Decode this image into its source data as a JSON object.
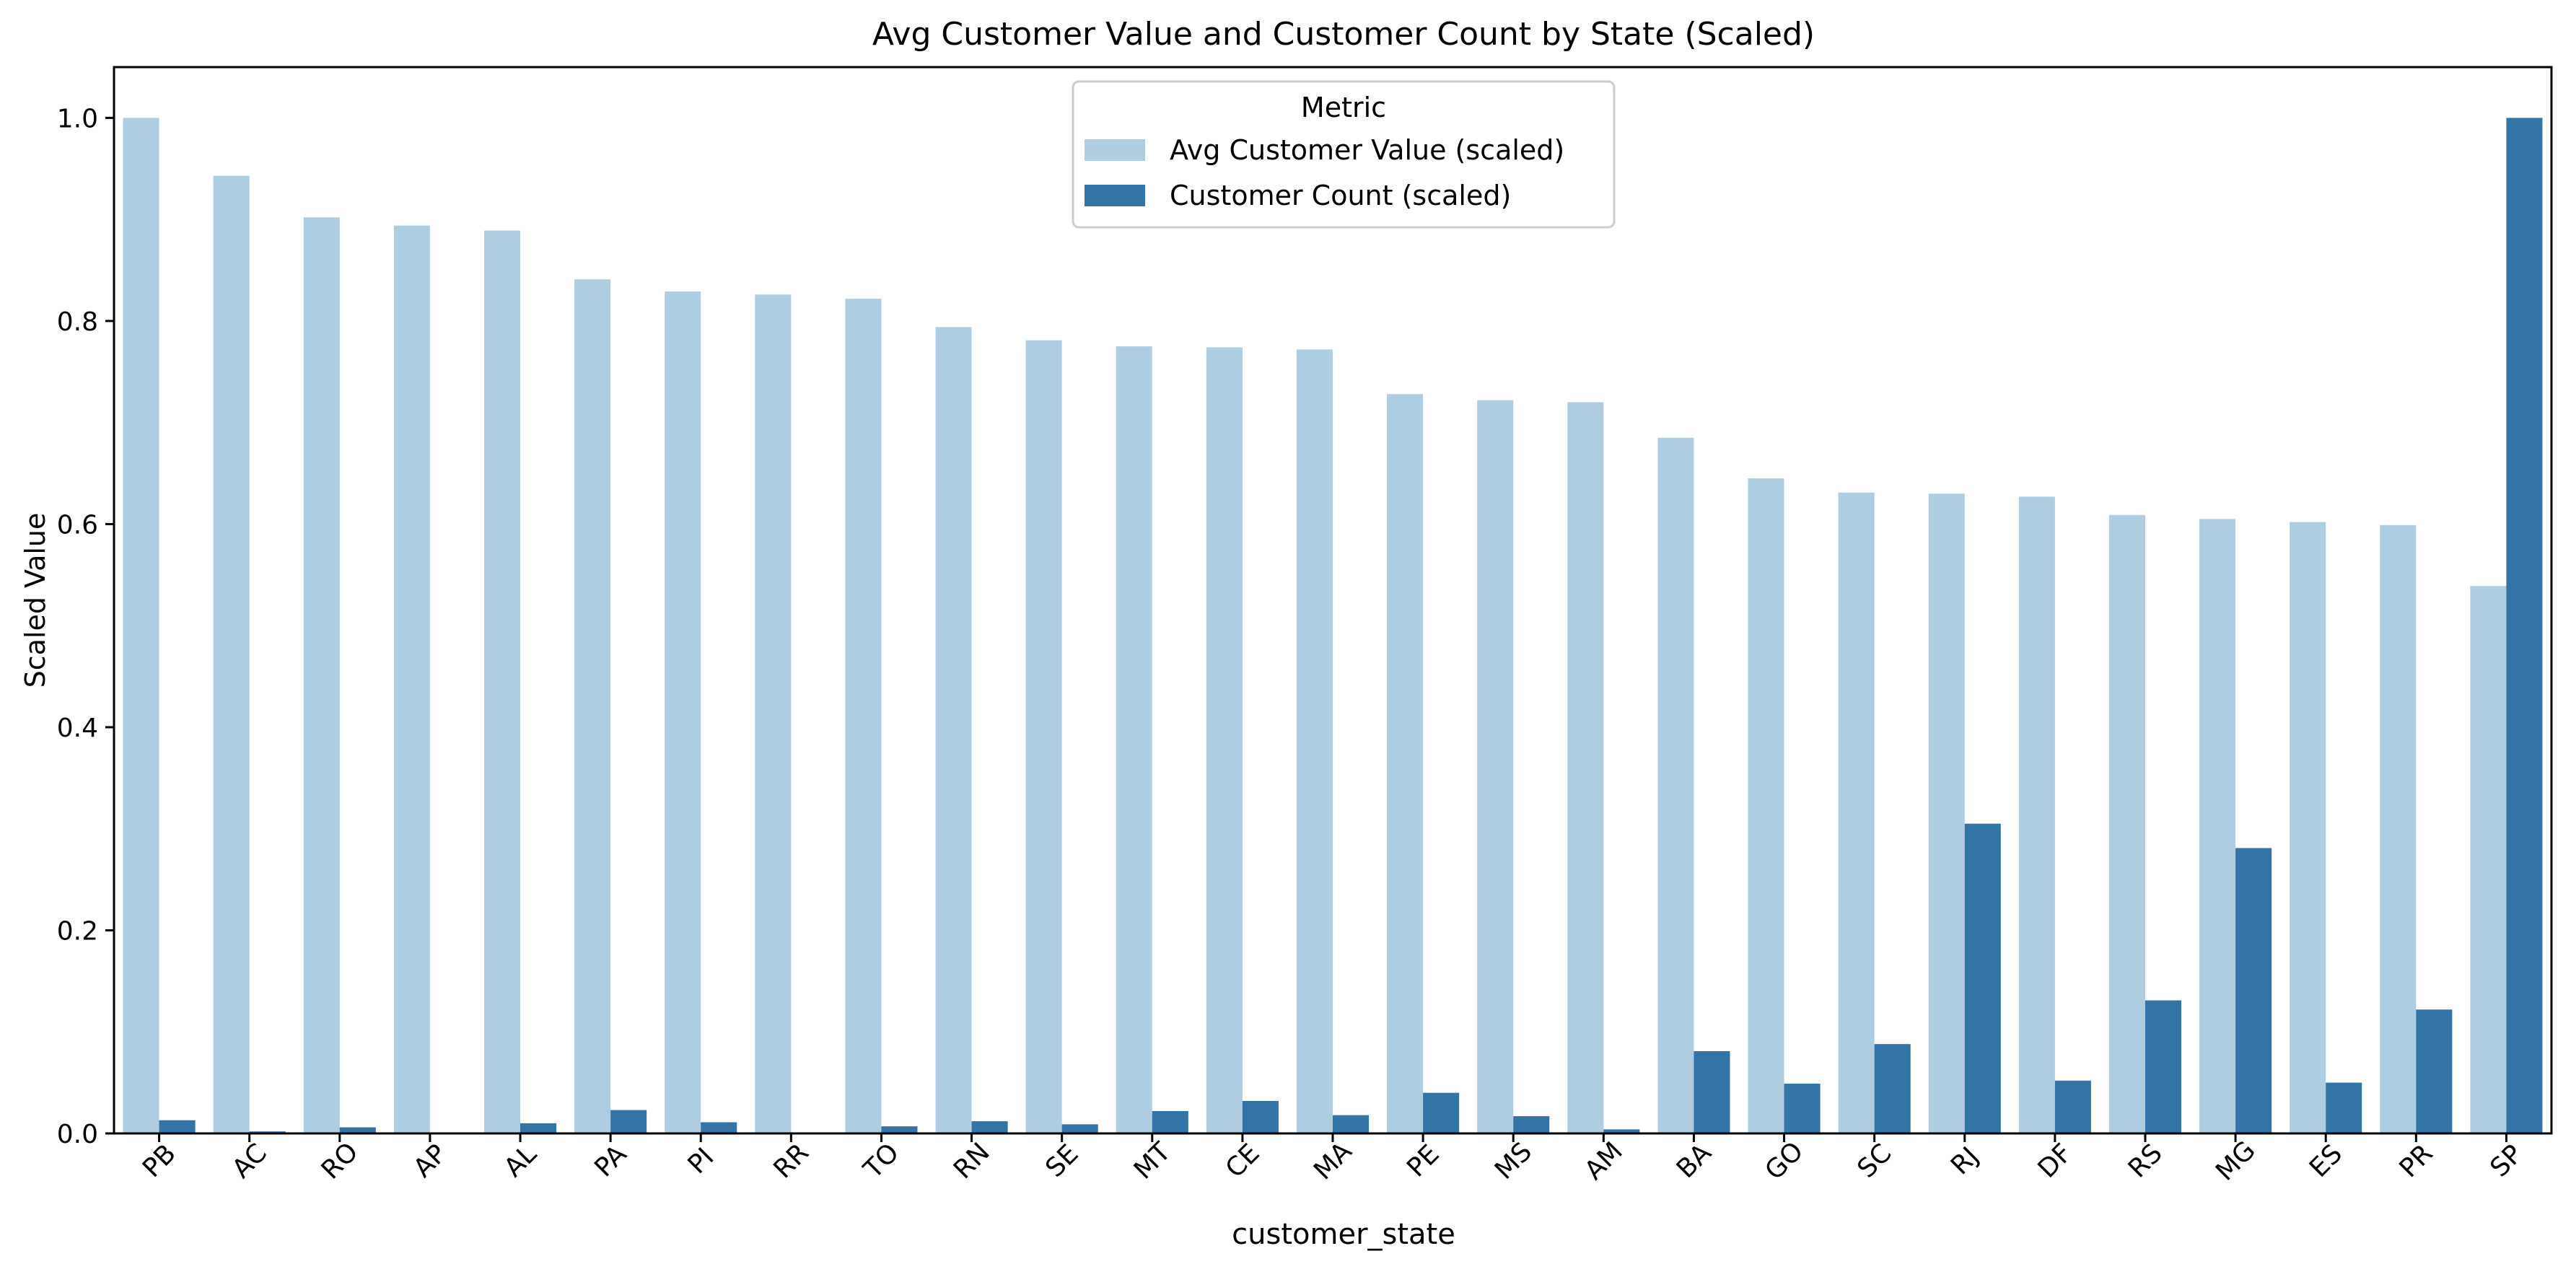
{
  "chart_data": {
    "type": "bar",
    "title": "Avg Customer Value and Customer Count by State (Scaled)",
    "xlabel": "customer_state",
    "ylabel": "Scaled Value",
    "ylim": [
      0,
      1.05
    ],
    "yticks": [
      0.0,
      0.2,
      0.4,
      0.6,
      0.8,
      1.0
    ],
    "ytick_labels": [
      "0.0",
      "0.2",
      "0.4",
      "0.6",
      "0.8",
      "1.0"
    ],
    "grid": false,
    "categories": [
      "PB",
      "AC",
      "RO",
      "AP",
      "AL",
      "PA",
      "PI",
      "RR",
      "TO",
      "RN",
      "SE",
      "MT",
      "CE",
      "MA",
      "PE",
      "MS",
      "AM",
      "BA",
      "GO",
      "SC",
      "RJ",
      "DF",
      "RS",
      "MG",
      "ES",
      "PR",
      "SP"
    ],
    "legend": {
      "title": "Metric",
      "position": "upper-center"
    },
    "series": [
      {
        "name": "Avg Customer Value (scaled)",
        "color": "#aecde1",
        "values": [
          1.0,
          0.943,
          0.902,
          0.894,
          0.889,
          0.841,
          0.829,
          0.826,
          0.822,
          0.794,
          0.781,
          0.775,
          0.774,
          0.772,
          0.728,
          0.722,
          0.72,
          0.685,
          0.645,
          0.631,
          0.63,
          0.627,
          0.609,
          0.605,
          0.602,
          0.599,
          0.539
        ]
      },
      {
        "name": "Customer Count (scaled)",
        "color": "#3274a5",
        "values": [
          0.013,
          0.002,
          0.006,
          0.001,
          0.01,
          0.023,
          0.011,
          0.0,
          0.007,
          0.012,
          0.009,
          0.022,
          0.032,
          0.018,
          0.04,
          0.017,
          0.004,
          0.081,
          0.049,
          0.088,
          0.305,
          0.052,
          0.131,
          0.281,
          0.05,
          0.122,
          1.0
        ]
      }
    ]
  }
}
